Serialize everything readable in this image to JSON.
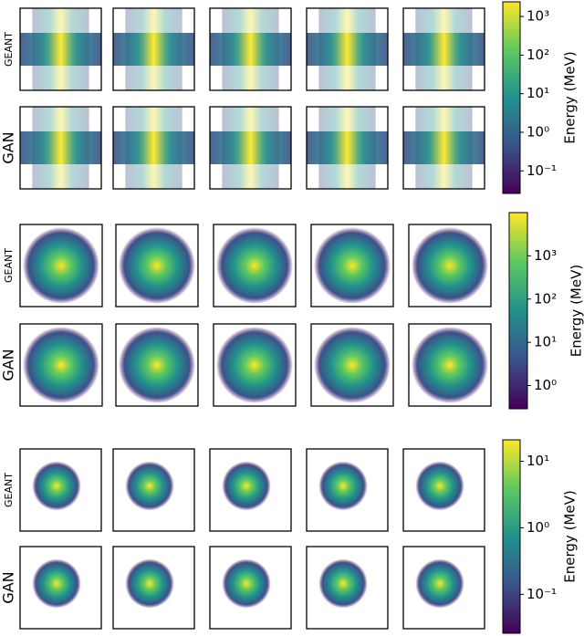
{
  "chart_data": [
    {
      "type": "heatmap",
      "row_labels": [
        "GEANT",
        "GAN"
      ],
      "colorbar_label": "Energy (MeV)",
      "colormap": "viridis",
      "log_scale": true,
      "zlim": [
        0.026,
        2400
      ],
      "zticks": [
        {
          "value": 0.1,
          "label": "10⁻¹"
        },
        {
          "value": 1,
          "label": "10⁰"
        },
        {
          "value": 10,
          "label": "10¹"
        },
        {
          "value": 100,
          "label": "10²"
        },
        {
          "value": 1000,
          "label": "10³"
        }
      ]
    },
    {
      "type": "heatmap",
      "row_labels": [
        "GEANT",
        "GAN"
      ],
      "colorbar_label": "Energy (MeV)",
      "colormap": "viridis",
      "log_scale": true,
      "zlim": [
        0.29,
        10000
      ],
      "zticks": [
        {
          "value": 1,
          "label": "10⁰"
        },
        {
          "value": 10,
          "label": "10¹"
        },
        {
          "value": 100,
          "label": "10²"
        },
        {
          "value": 1000,
          "label": "10³"
        }
      ]
    },
    {
      "type": "heatmap",
      "row_labels": [
        "GEANT",
        "GAN"
      ],
      "colorbar_label": "Energy (MeV)",
      "colormap": "viridis",
      "log_scale": true,
      "zlim": [
        0.026,
        21
      ],
      "zticks": [
        {
          "value": 0.1,
          "label": "10⁻¹"
        },
        {
          "value": 1,
          "label": "10⁰"
        },
        {
          "value": 10,
          "label": "10¹"
        }
      ]
    }
  ]
}
